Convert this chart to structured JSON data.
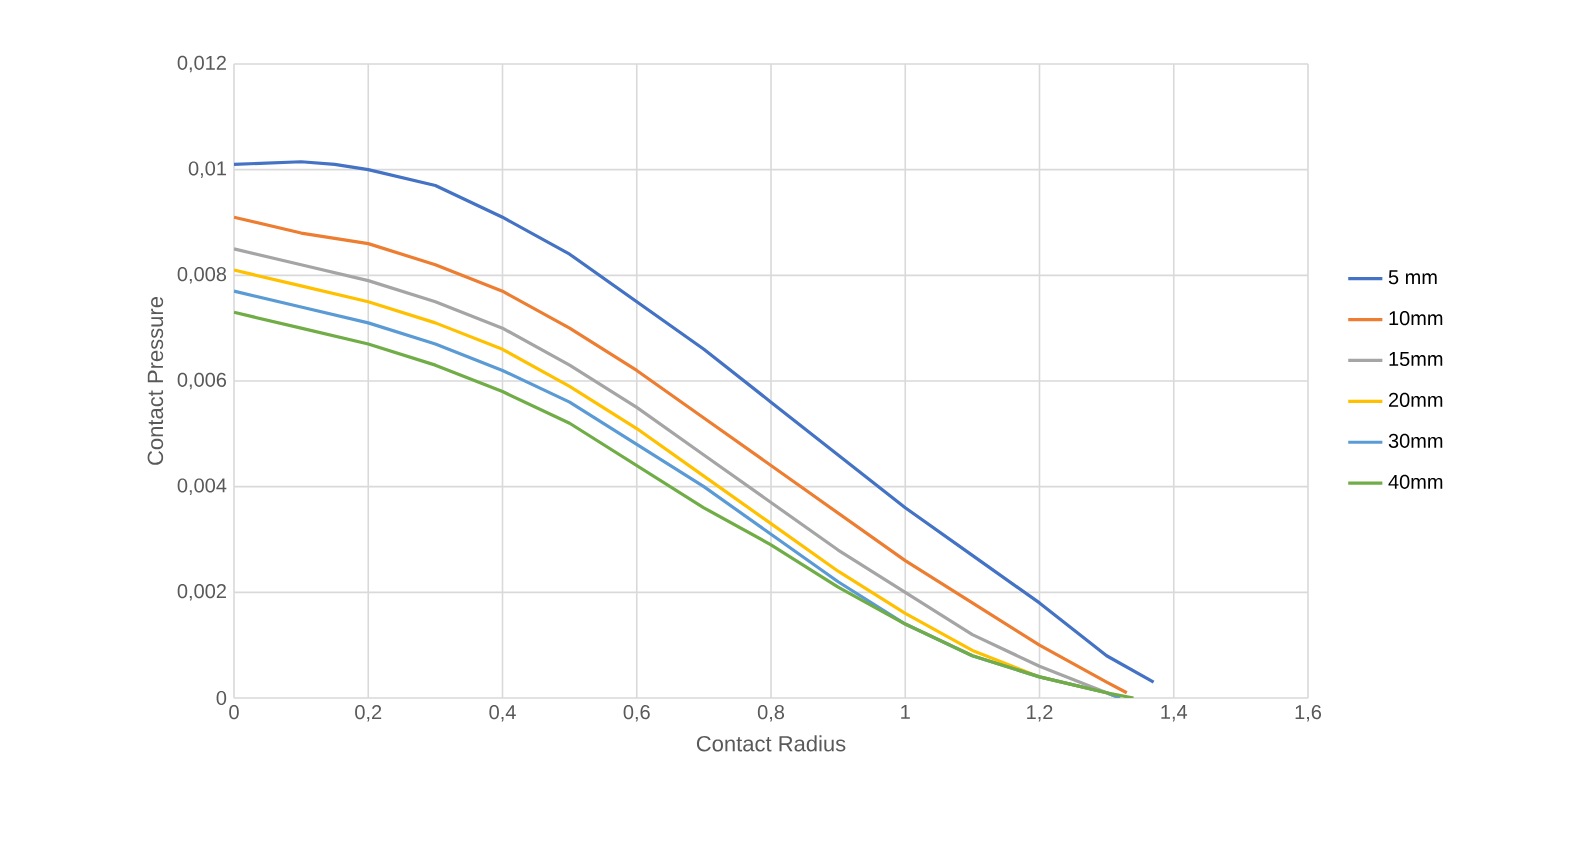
{
  "chart_data": {
    "type": "line",
    "xlabel": "Contact Radius",
    "ylabel": "Contact Pressure",
    "xlim": [
      0,
      1.6
    ],
    "ylim": [
      0,
      0.012
    ],
    "xticks": [
      0,
      {
        "value": 0.2,
        "label": "0,2"
      },
      {
        "value": 0.4,
        "label": "0,4"
      },
      {
        "value": 0.6,
        "label": "0,6"
      },
      {
        "value": 0.8,
        "label": "0,8"
      },
      1,
      {
        "value": 1.2,
        "label": "1,2"
      },
      {
        "value": 1.4,
        "label": "1,4"
      },
      {
        "value": 1.6,
        "label": "1,6"
      }
    ],
    "yticks": [
      0,
      {
        "value": 0.002,
        "label": "0,002"
      },
      {
        "value": 0.004,
        "label": "0,004"
      },
      {
        "value": 0.006,
        "label": "0,006"
      },
      {
        "value": 0.008,
        "label": "0,008"
      },
      {
        "value": 0.01,
        "label": "0,01"
      },
      {
        "value": 0.012,
        "label": "0,012"
      }
    ],
    "grid": true,
    "legend": "right",
    "marker": "none",
    "line_style": "solid",
    "series": [
      {
        "name": "5 mm",
        "color": "#4472c4",
        "x": [
          0,
          0.1,
          0.15,
          0.2,
          0.3,
          0.4,
          0.5,
          0.6,
          0.7,
          0.8,
          0.9,
          1.0,
          1.1,
          1.2,
          1.3,
          1.37
        ],
        "values": [
          0.0101,
          0.01015,
          0.0101,
          0.01,
          0.0097,
          0.0091,
          0.0084,
          0.0075,
          0.0066,
          0.0056,
          0.0046,
          0.0036,
          0.0027,
          0.0018,
          0.0008,
          0.0003
        ]
      },
      {
        "name": "10mm",
        "color": "#ed7d31",
        "x": [
          0,
          0.1,
          0.2,
          0.3,
          0.4,
          0.5,
          0.6,
          0.7,
          0.8,
          0.9,
          1.0,
          1.1,
          1.2,
          1.3,
          1.33
        ],
        "values": [
          0.0091,
          0.0088,
          0.0086,
          0.0082,
          0.0077,
          0.007,
          0.0062,
          0.0053,
          0.0044,
          0.0035,
          0.0026,
          0.0018,
          0.001,
          0.0003,
          0.0001
        ]
      },
      {
        "name": "15mm",
        "color": "#a5a5a5",
        "x": [
          0,
          0.1,
          0.2,
          0.3,
          0.4,
          0.5,
          0.6,
          0.7,
          0.8,
          0.9,
          1.0,
          1.1,
          1.2,
          1.3,
          1.32
        ],
        "values": [
          0.0085,
          0.0082,
          0.0079,
          0.0075,
          0.007,
          0.0063,
          0.0055,
          0.0046,
          0.0037,
          0.0028,
          0.002,
          0.0012,
          0.0006,
          0.0001,
          0
        ]
      },
      {
        "name": "20mm",
        "color": "#ffc000",
        "x": [
          0,
          0.1,
          0.2,
          0.3,
          0.4,
          0.5,
          0.6,
          0.7,
          0.8,
          0.9,
          1.0,
          1.1,
          1.2,
          1.3,
          1.32
        ],
        "values": [
          0.0081,
          0.0078,
          0.0075,
          0.0071,
          0.0066,
          0.0059,
          0.0051,
          0.0042,
          0.0033,
          0.0024,
          0.0016,
          0.0009,
          0.0004,
          0.0001,
          0
        ]
      },
      {
        "name": "30mm",
        "color": "#5b9bd5",
        "x": [
          0,
          0.1,
          0.2,
          0.3,
          0.4,
          0.5,
          0.6,
          0.7,
          0.8,
          0.9,
          1.0,
          1.1,
          1.2,
          1.3,
          1.32
        ],
        "values": [
          0.0077,
          0.0074,
          0.0071,
          0.0067,
          0.0062,
          0.0056,
          0.0048,
          0.004,
          0.0031,
          0.0022,
          0.0014,
          0.0008,
          0.0004,
          0.0001,
          0
        ]
      },
      {
        "name": "40mm",
        "color": "#70ad47",
        "x": [
          0,
          0.1,
          0.2,
          0.3,
          0.4,
          0.5,
          0.6,
          0.7,
          0.8,
          0.9,
          1.0,
          1.1,
          1.2,
          1.3,
          1.34
        ],
        "values": [
          0.0073,
          0.007,
          0.0067,
          0.0063,
          0.0058,
          0.0052,
          0.0044,
          0.0036,
          0.0029,
          0.0021,
          0.0014,
          0.0008,
          0.0004,
          0.0001,
          0
        ]
      }
    ]
  }
}
